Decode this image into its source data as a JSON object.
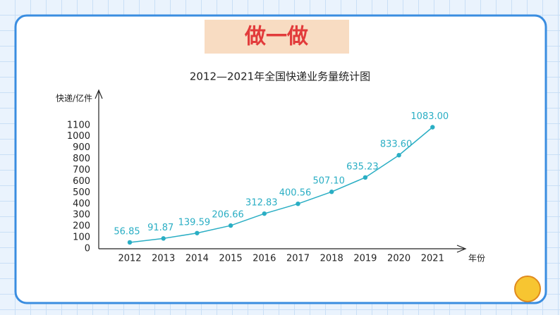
{
  "slide": {
    "heading": "做一做"
  },
  "chart_data": {
    "type": "line",
    "title": "2012—2021年全国快递业务量统计图",
    "y_label": "快递/亿件",
    "x_label": "年份",
    "categories": [
      "2012",
      "2013",
      "2014",
      "2015",
      "2016",
      "2017",
      "2018",
      "2019",
      "2020",
      "2021"
    ],
    "values": [
      56.85,
      91.87,
      139.59,
      206.66,
      312.83,
      400.56,
      507.1,
      635.23,
      833.6,
      1083.0
    ],
    "value_labels": [
      "56.85",
      "91.87",
      "139.59",
      "206.66",
      "312.83",
      "400.56",
      "507.10",
      "635.23",
      "833.60",
      "1083.00"
    ],
    "color": "#2aaec4",
    "ylim": [
      0,
      1400
    ],
    "yticks": [
      0,
      100,
      200,
      300,
      400,
      500,
      600,
      700,
      800,
      900,
      1000,
      1100
    ]
  }
}
